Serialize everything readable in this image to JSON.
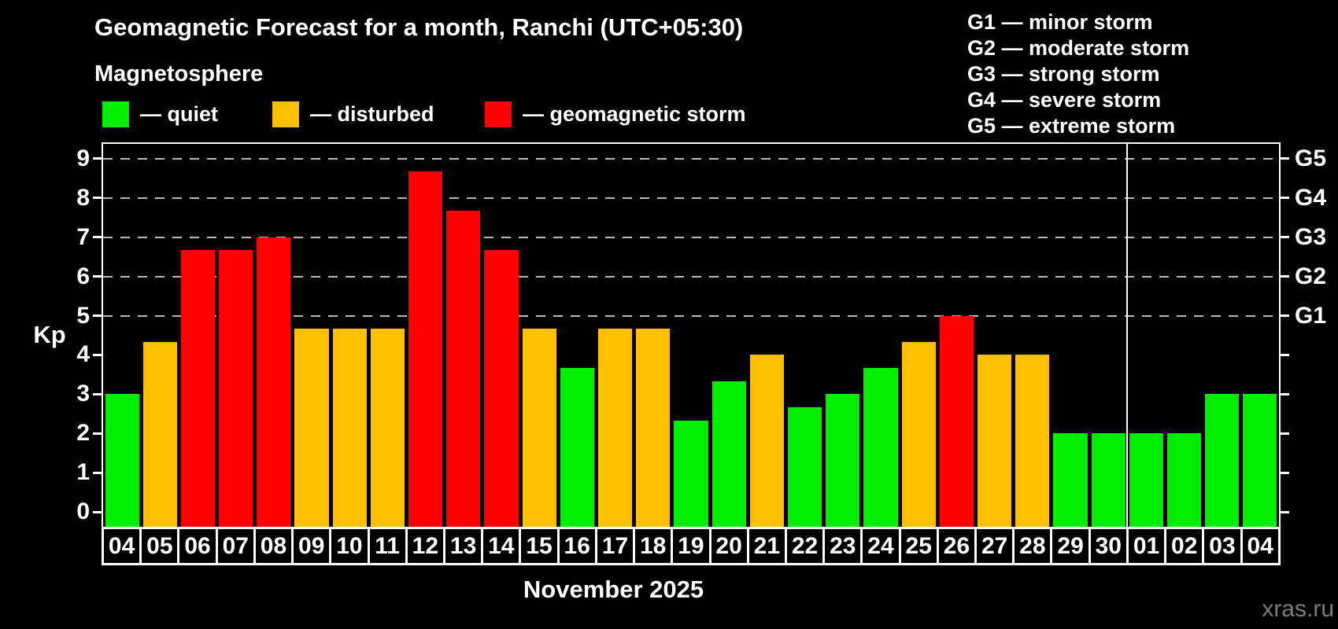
{
  "title": "Geomagnetic Forecast for a month, Ranchi (UTC+05:30)",
  "subtitle": "Magnetosphere",
  "status_legend": [
    {
      "key": "quiet",
      "label": "— quiet"
    },
    {
      "key": "disturbed",
      "label": "— disturbed"
    },
    {
      "key": "storm",
      "label": "— geomagnetic storm"
    }
  ],
  "g_legend": [
    "G1 — minor storm",
    "G2 — moderate storm",
    "G3 — strong storm",
    "G4 — severe storm",
    "G5 — extreme storm"
  ],
  "axis": {
    "y_title": "Kp",
    "y_ticks": [
      "0",
      "1",
      "2",
      "3",
      "4",
      "5",
      "6",
      "7",
      "8",
      "9"
    ],
    "g_levels": [
      {
        "label": "G1",
        "kp": 5
      },
      {
        "label": "G2",
        "kp": 6
      },
      {
        "label": "G3",
        "kp": 7
      },
      {
        "label": "G4",
        "kp": 8
      },
      {
        "label": "G5",
        "kp": 9
      }
    ]
  },
  "x_title": "November 2025",
  "watermark": "xras.ru",
  "colors": {
    "quiet": "#00ee00",
    "disturbed": "#ffc000",
    "storm": "#ff0000",
    "grid": "#b8b8b8",
    "frame": "#ffffff",
    "background": "#000000",
    "watermark": "#7b7b7b"
  },
  "chart_data": {
    "type": "bar",
    "title": "Geomagnetic Forecast for a month, Ranchi (UTC+05:30)",
    "ylabel": "Kp",
    "ylim": [
      0,
      9.4
    ],
    "grid_levels": [
      5,
      6,
      7,
      8,
      9
    ],
    "grid_style": "dashed",
    "legend_position": "top-left",
    "month_separator_after_index": 26,
    "bars": [
      {
        "day": "04",
        "kp": 3,
        "status": "quiet"
      },
      {
        "day": "05",
        "kp": 4.33,
        "status": "disturbed"
      },
      {
        "day": "06",
        "kp": 6.67,
        "status": "storm"
      },
      {
        "day": "07",
        "kp": 6.67,
        "status": "storm"
      },
      {
        "day": "08",
        "kp": 7,
        "status": "storm"
      },
      {
        "day": "09",
        "kp": 4.67,
        "status": "disturbed"
      },
      {
        "day": "10",
        "kp": 4.67,
        "status": "disturbed"
      },
      {
        "day": "11",
        "kp": 4.67,
        "status": "disturbed"
      },
      {
        "day": "12",
        "kp": 8.67,
        "status": "storm"
      },
      {
        "day": "13",
        "kp": 7.67,
        "status": "storm"
      },
      {
        "day": "14",
        "kp": 6.67,
        "status": "storm"
      },
      {
        "day": "15",
        "kp": 4.67,
        "status": "disturbed"
      },
      {
        "day": "16",
        "kp": 3.67,
        "status": "quiet"
      },
      {
        "day": "17",
        "kp": 4.67,
        "status": "disturbed"
      },
      {
        "day": "18",
        "kp": 4.67,
        "status": "disturbed"
      },
      {
        "day": "19",
        "kp": 2.33,
        "status": "quiet"
      },
      {
        "day": "20",
        "kp": 3.33,
        "status": "quiet"
      },
      {
        "day": "21",
        "kp": 4,
        "status": "disturbed"
      },
      {
        "day": "22",
        "kp": 2.67,
        "status": "quiet"
      },
      {
        "day": "23",
        "kp": 3,
        "status": "quiet"
      },
      {
        "day": "24",
        "kp": 3.67,
        "status": "quiet"
      },
      {
        "day": "25",
        "kp": 4.33,
        "status": "disturbed"
      },
      {
        "day": "26",
        "kp": 5,
        "status": "storm"
      },
      {
        "day": "27",
        "kp": 4,
        "status": "disturbed"
      },
      {
        "day": "28",
        "kp": 4,
        "status": "disturbed"
      },
      {
        "day": "29",
        "kp": 2,
        "status": "quiet"
      },
      {
        "day": "30",
        "kp": 2,
        "status": "quiet"
      },
      {
        "day": "01",
        "kp": 2,
        "status": "quiet"
      },
      {
        "day": "02",
        "kp": 2,
        "status": "quiet"
      },
      {
        "day": "03",
        "kp": 3,
        "status": "quiet"
      },
      {
        "day": "04",
        "kp": 3,
        "status": "quiet"
      }
    ]
  }
}
